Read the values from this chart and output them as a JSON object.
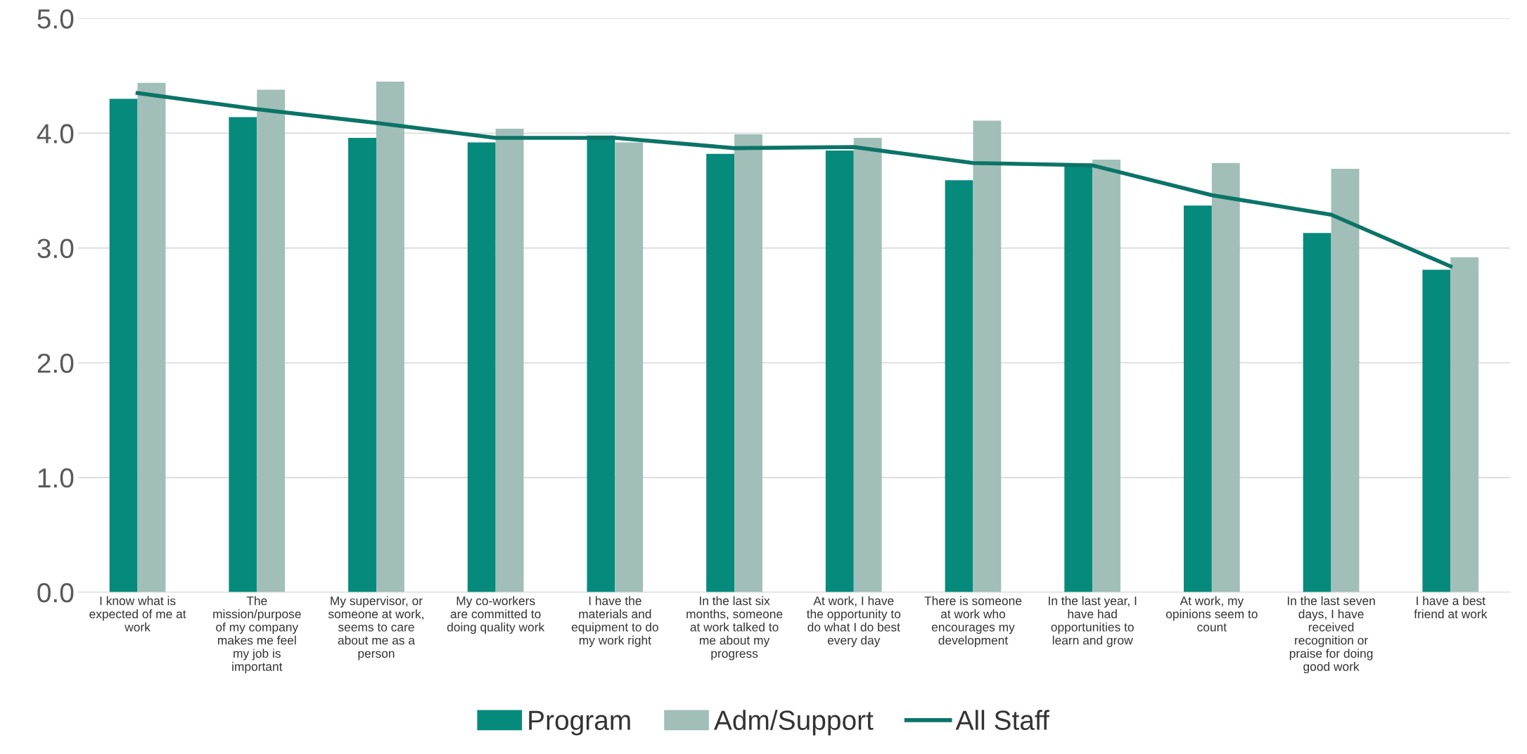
{
  "chart_data": {
    "type": "bar",
    "categories": [
      "I know what is\nexpected of me at\nwork",
      "The\nmission/purpose\nof my company\nmakes me feel\nmy job is\nimportant",
      "My supervisor, or\nsomeone at work,\nseems to care\nabout me as a\nperson",
      "My co-workers\nare committed to\ndoing quality work",
      "I have the\nmaterials and\nequipment to do\nmy work right",
      "In the last six\nmonths, someone\nat work talked to\nme about my\nprogress",
      "At work, I have\nthe opportunity to\ndo what I do best\nevery day",
      "There is someone\nat work who\nencourages my\ndevelopment",
      "In the last year, I\nhave had\nopportunities to\nlearn and grow",
      "At work, my\nopinions seem to\ncount",
      "In the last seven\ndays, I have\nreceived\nrecognition or\npraise for doing\ngood work",
      "I have a best\nfriend at work"
    ],
    "series": [
      {
        "name": "Program",
        "color": "#058a7c",
        "values": [
          4.3,
          4.14,
          3.96,
          3.92,
          3.98,
          3.82,
          3.85,
          3.59,
          3.72,
          3.37,
          3.13,
          2.81
        ]
      },
      {
        "name": "Adm/Support",
        "color": "#a1bfb8",
        "values": [
          4.44,
          4.38,
          4.45,
          4.04,
          3.92,
          3.99,
          3.96,
          4.11,
          3.77,
          3.74,
          3.69,
          2.92
        ]
      },
      {
        "name": "All Staff",
        "type": "line",
        "color": "#0b7467",
        "values": [
          4.35,
          4.21,
          4.09,
          3.96,
          3.96,
          3.87,
          3.88,
          3.74,
          3.72,
          3.46,
          3.29,
          2.84
        ]
      }
    ],
    "ylim": [
      0,
      5
    ],
    "yticks": [
      {
        "value": 0,
        "label": "0.0"
      },
      {
        "value": 1,
        "label": "1.0"
      },
      {
        "value": 2,
        "label": "2.0"
      },
      {
        "value": 3,
        "label": "3.0"
      },
      {
        "value": 4,
        "label": "4.0"
      },
      {
        "value": 5,
        "label": "5.0"
      }
    ],
    "grid": "y",
    "legend": "bottom"
  }
}
